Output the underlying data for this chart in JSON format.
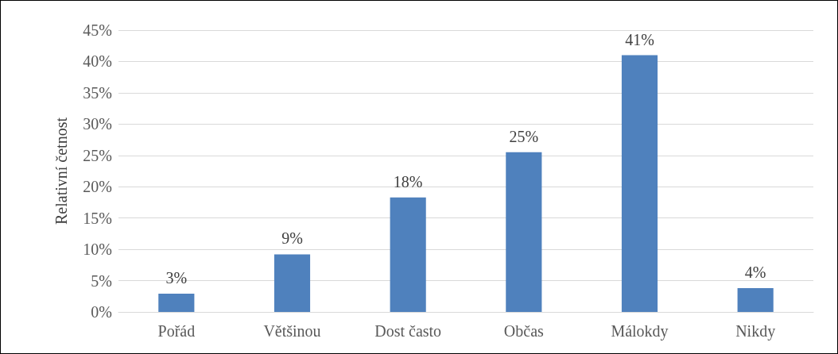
{
  "chart_data": {
    "type": "bar",
    "ylabel": "Relativní četnost",
    "categories": [
      "Pořád",
      "Většinou",
      "Dost často",
      "Občas",
      "Málokdy",
      "Nikdy"
    ],
    "values": [
      2.9,
      9.2,
      18.3,
      25.5,
      41.0,
      3.8
    ],
    "value_labels": [
      "3%",
      "9%",
      "18%",
      "25%",
      "41%",
      "4%"
    ],
    "color": "#4f81bd",
    "ylim": [
      0,
      45
    ],
    "yticks": [
      {
        "value": 0,
        "label": "0%"
      },
      {
        "value": 5,
        "label": "5%"
      },
      {
        "value": 10,
        "label": "10%"
      },
      {
        "value": 15,
        "label": "15%"
      },
      {
        "value": 20,
        "label": "20%"
      },
      {
        "value": 25,
        "label": "25%"
      },
      {
        "value": 30,
        "label": "30%"
      },
      {
        "value": 35,
        "label": "35%"
      },
      {
        "value": 40,
        "label": "40%"
      },
      {
        "value": 45,
        "label": "45%"
      }
    ],
    "grid": "y"
  }
}
